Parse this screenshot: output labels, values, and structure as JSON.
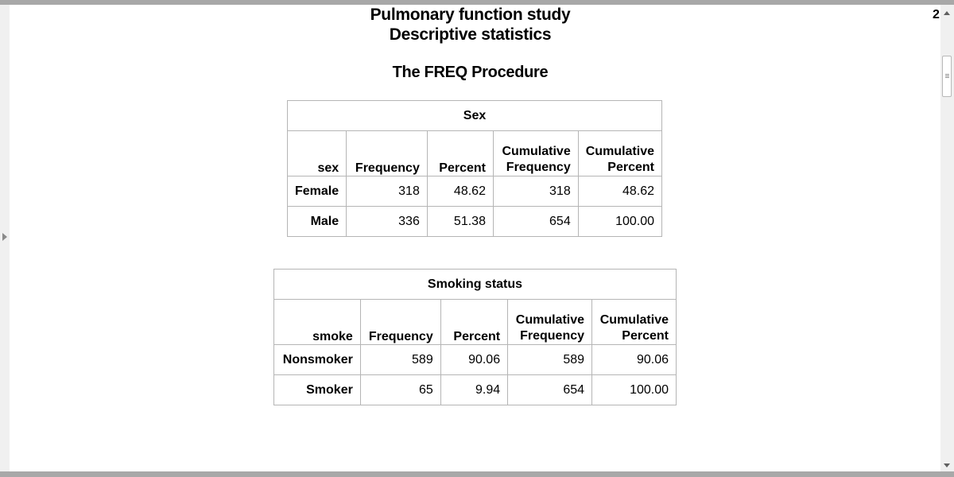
{
  "page": {
    "number": "2"
  },
  "titles": {
    "line1": "Pulmonary function study",
    "line2": "Descriptive statistics",
    "procedure": "The FREQ Procedure"
  },
  "tables": [
    {
      "caption": "Sex",
      "var_header": "sex",
      "headers": [
        "Frequency",
        "Percent",
        "Cumulative",
        "Frequency",
        "Cumulative",
        "Percent"
      ],
      "rows": [
        {
          "label": "Female",
          "frequency": "318",
          "percent": "48.62",
          "cum_frequency": "318",
          "cum_percent": "48.62"
        },
        {
          "label": "Male",
          "frequency": "336",
          "percent": "51.38",
          "cum_frequency": "654",
          "cum_percent": "100.00"
        }
      ]
    },
    {
      "caption": "Smoking status",
      "var_header": "smoke",
      "headers": [
        "Frequency",
        "Percent",
        "Cumulative",
        "Frequency",
        "Cumulative",
        "Percent"
      ],
      "rows": [
        {
          "label": "Nonsmoker",
          "frequency": "589",
          "percent": "90.06",
          "cum_frequency": "589",
          "cum_percent": "90.06"
        },
        {
          "label": "Smoker",
          "frequency": "65",
          "percent": "9.94",
          "cum_frequency": "654",
          "cum_percent": "100.00"
        }
      ]
    }
  ],
  "colors": {
    "frame": "#a8a8a8",
    "grid": "#b5b5b5",
    "scroll_bg": "#f0f0f0"
  },
  "icons": [
    "scroll-up-arrow-icon",
    "scroll-down-arrow-icon",
    "scroll-thumb-grip-icon",
    "expand-arrow-icon"
  ]
}
